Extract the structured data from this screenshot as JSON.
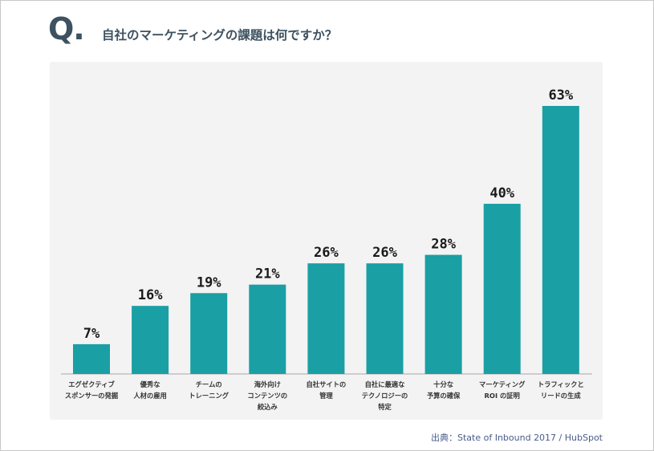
{
  "header": {
    "q_mark": "Q.",
    "question": "自社のマーケティングの課題は何ですか？"
  },
  "source": "出典：State of Inbound 2017 / HubSpot",
  "colors": {
    "bar": "#1a9fa4",
    "panel": "#f3f3f3",
    "heading": "#3d5160",
    "source": "#4a5b8a"
  },
  "chart_data": {
    "type": "bar",
    "categories": [
      [
        "エグゼクティブ",
        "スポンサーの発掘"
      ],
      [
        "優秀な",
        "人材の雇用"
      ],
      [
        "チームの",
        "トレーニング"
      ],
      [
        "海外向け",
        "コンテンツの",
        "絞込み"
      ],
      [
        "自社サイトの",
        "管理"
      ],
      [
        "自社に最適な",
        "テクノロジーの",
        "特定"
      ],
      [
        "十分な",
        "予算の確保"
      ],
      [
        "マーケティング",
        "ROI の証明"
      ],
      [
        "トラフィックと",
        "リードの生成"
      ]
    ],
    "values": [
      7,
      16,
      19,
      21,
      26,
      26,
      28,
      40,
      63
    ],
    "value_labels": [
      "7%",
      "16%",
      "19%",
      "21%",
      "26%",
      "26%",
      "28%",
      "40%",
      "63%"
    ],
    "ylim": [
      0,
      63
    ],
    "grid": false
  }
}
